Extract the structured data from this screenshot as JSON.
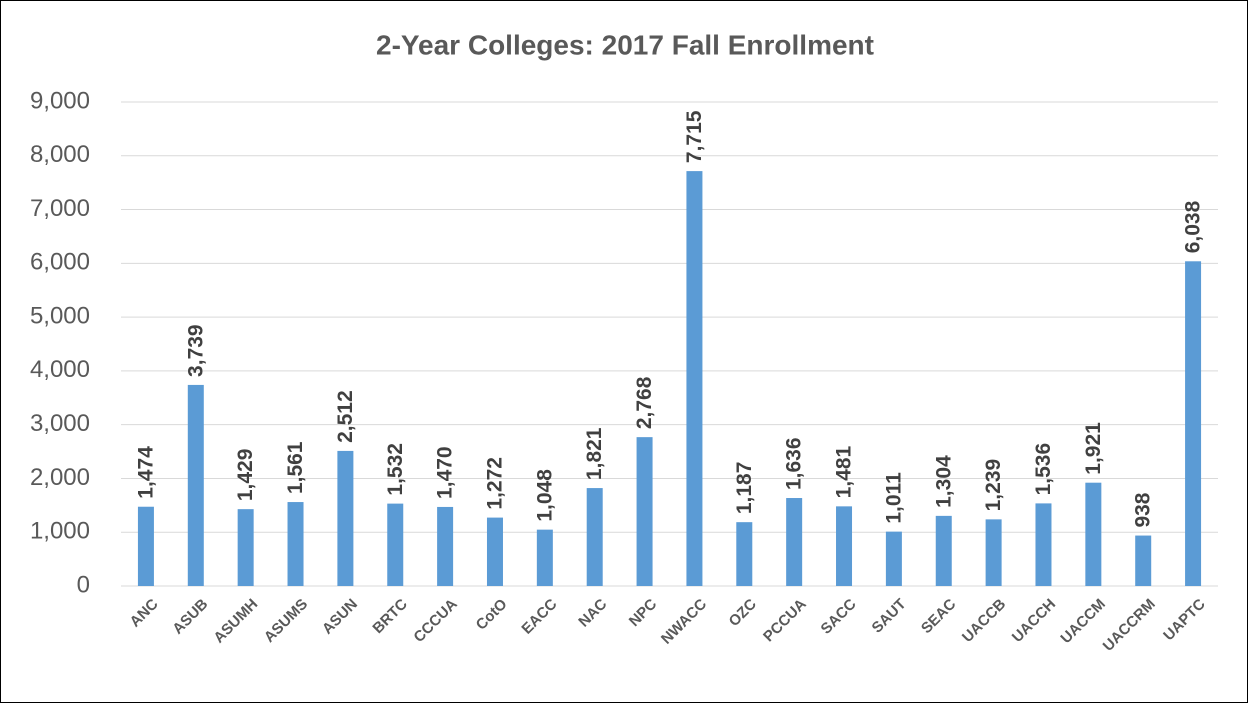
{
  "chart_data": {
    "type": "bar",
    "title": "2-Year Colleges: 2017 Fall Enrollment",
    "categories": [
      "ANC",
      "ASUB",
      "ASUMH",
      "ASUMS",
      "ASUN",
      "BRTC",
      "CCCUA",
      "CotO",
      "EACC",
      "NAC",
      "NPC",
      "NWACC",
      "OZC",
      "PCCUA",
      "SACC",
      "SAUT",
      "SEAC",
      "UACCB",
      "UACCH",
      "UACCM",
      "UACCRM",
      "UAPTC"
    ],
    "values": [
      1474,
      3739,
      1429,
      1561,
      2512,
      1532,
      1470,
      1272,
      1048,
      1821,
      2768,
      7715,
      1187,
      1636,
      1481,
      1011,
      1304,
      1239,
      1536,
      1921,
      938,
      6038
    ],
    "value_labels": [
      "1,474",
      "3,739",
      "1,429",
      "1,561",
      "2,512",
      "1,532",
      "1,470",
      "1,272",
      "1,048",
      "1,821",
      "2,768",
      "7,715",
      "1,187",
      "1,636",
      "1,481",
      "1,011",
      "1,304",
      "1,239",
      "1,536",
      "1,921",
      "938",
      "6,038"
    ],
    "color": "#5b9bd5",
    "ylim": [
      0,
      9000
    ],
    "yticks": [
      0,
      {
        "value": 1000,
        "label": "1,000"
      },
      {
        "value": 2000,
        "label": "2,000"
      },
      {
        "value": 3000,
        "label": "3,000"
      },
      {
        "value": 4000,
        "label": "4,000"
      },
      {
        "value": 5000,
        "label": "5,000"
      },
      {
        "value": 6000,
        "label": "6,000"
      },
      {
        "value": 7000,
        "label": "7,000"
      },
      {
        "value": 8000,
        "label": "8,000"
      },
      {
        "value": 9000,
        "label": "9,000"
      }
    ],
    "grid": true
  }
}
